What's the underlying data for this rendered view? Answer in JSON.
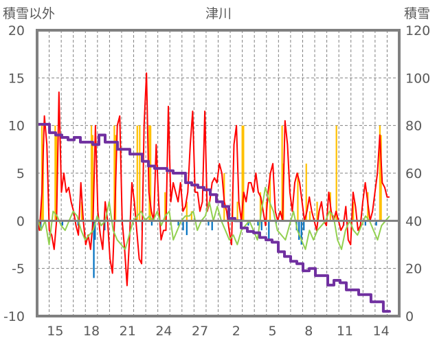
{
  "chart_data": {
    "type": "line",
    "title": "津川",
    "ylabel_left": "積雪以外",
    "ylabel_right": "積雪",
    "ylim_left": [
      -10,
      20
    ],
    "ylim_right": [
      0,
      120
    ],
    "yticks_left": [
      "20",
      "15",
      "10",
      "5",
      "0",
      "-5",
      "-10"
    ],
    "yticks_right": [
      "120",
      "100",
      "80",
      "60",
      "40",
      "20",
      "0"
    ],
    "x_range_days": [
      0,
      30
    ],
    "x_tick_labels": [
      {
        "day": 1,
        "label": "15"
      },
      {
        "day": 4,
        "label": "18"
      },
      {
        "day": 7,
        "label": "21"
      },
      {
        "day": 10,
        "label": "24"
      },
      {
        "day": 13,
        "label": "27"
      },
      {
        "day": 16,
        "label": "2"
      },
      {
        "day": 19,
        "label": "5"
      },
      {
        "day": 22,
        "label": "8"
      },
      {
        "day": 25,
        "label": "11"
      },
      {
        "day": 28,
        "label": "14"
      }
    ],
    "grid": true,
    "colors": {
      "red": "#ff0000",
      "green": "#92d050",
      "purple": "#7030a0",
      "yellow": "#ffc000",
      "blue": "#0070c0",
      "frame": "#808080"
    },
    "series": [
      {
        "name": "red",
        "axis": "left",
        "x_start": 0,
        "x_end": 29.2,
        "values": [
          0,
          -1,
          3,
          11,
          8,
          -1,
          -1.5,
          -3,
          0,
          13.5,
          3,
          5,
          3,
          3.5,
          2,
          1,
          -0.5,
          -1.5,
          4,
          0,
          -2.5,
          -1.5,
          -3,
          0,
          10,
          1,
          -1.5,
          -3,
          2,
          0,
          -4,
          -5.5,
          1,
          10,
          11,
          0,
          -3,
          -6.8,
          -2,
          4,
          2,
          -1,
          -4,
          -4.5,
          10,
          15.5,
          3,
          1,
          0,
          8,
          2,
          -2,
          -1,
          -1,
          12,
          2,
          4,
          3,
          2,
          4,
          1,
          1.5,
          3,
          8,
          11.5,
          3,
          3,
          1,
          2,
          11.5,
          1,
          2,
          4,
          4.5,
          4,
          6,
          5,
          2,
          1,
          -1,
          -2.5,
          8,
          10,
          2,
          0,
          3,
          2,
          4,
          4,
          3,
          5,
          3,
          2.5,
          1,
          -0.5,
          3,
          5,
          6,
          1,
          0,
          1,
          0,
          10.5,
          8,
          3,
          1,
          4,
          5,
          4,
          2,
          0,
          1,
          2.5,
          1,
          0,
          -1,
          1,
          2,
          0,
          -0.5,
          3,
          1,
          0,
          1,
          0,
          -1,
          -0.5,
          1.5,
          -2,
          -2.5,
          3,
          1.5,
          -1,
          -0.5,
          2,
          4,
          2,
          0,
          1,
          3,
          5,
          9,
          4,
          3.5,
          2.5,
          2.5
        ]
      },
      {
        "name": "green",
        "axis": "left",
        "x_start": 0,
        "x_end": 29.2,
        "values": [
          0.5,
          -1,
          0,
          -2.5,
          1,
          0.5,
          -0.5,
          -1,
          0,
          1,
          0.5,
          -1,
          -2,
          -1.5,
          -1,
          0.5,
          -0.5,
          0,
          2,
          -1,
          -2,
          -2.5,
          -3,
          -1.5,
          0,
          0.5,
          1,
          0,
          0.5,
          0,
          1,
          -0.5,
          0.5,
          1,
          -2,
          -1,
          0,
          0.5,
          0.5,
          1,
          -1,
          0,
          0.5,
          2,
          0,
          1.5,
          0,
          -1,
          -2,
          -1.5,
          -2.5,
          -1,
          -0.5,
          0,
          -1,
          -2,
          1,
          3.5,
          2,
          1,
          -1,
          -1.5,
          -2,
          -0.5,
          1,
          -1,
          -2,
          -3,
          -1,
          -2,
          -1,
          -0.5,
          0,
          1,
          0.5,
          -2,
          -3,
          -1,
          0,
          -1,
          -1.5,
          -0.5,
          0.5,
          0,
          -1,
          -2,
          -0.5,
          0,
          0.5
        ]
      },
      {
        "name": "purple",
        "axis": "right",
        "x_start": 0,
        "x_end": 29.2,
        "values": [
          80.5,
          80.5,
          77,
          76,
          75,
          74,
          75,
          73,
          73,
          72,
          76,
          73,
          73,
          70,
          70,
          68,
          68,
          65,
          63,
          62,
          62,
          61,
          60,
          60,
          56,
          55,
          54,
          53,
          51,
          48,
          46,
          41,
          40,
          37,
          35.5,
          35,
          33,
          32,
          31,
          27,
          25,
          23,
          22,
          19,
          20,
          17,
          17,
          13,
          15,
          14,
          11,
          11,
          9,
          9,
          6,
          6,
          2,
          1.5
        ]
      }
    ],
    "bars_yellow": [
      [
        0.4,
        10
      ],
      [
        0.5,
        8
      ],
      [
        1.5,
        10
      ],
      [
        1.6,
        9
      ],
      [
        3.7,
        2
      ],
      [
        4.5,
        10
      ],
      [
        4.6,
        9
      ],
      [
        6.4,
        10
      ],
      [
        6.5,
        9
      ],
      [
        8.3,
        10
      ],
      [
        8.5,
        10
      ],
      [
        9.3,
        10
      ],
      [
        9.4,
        10
      ],
      [
        10.6,
        3
      ],
      [
        12.4,
        2
      ],
      [
        12.8,
        1
      ],
      [
        15.5,
        5
      ],
      [
        16.2,
        3
      ],
      [
        16.6,
        2
      ],
      [
        17,
        10
      ],
      [
        17.1,
        10
      ],
      [
        18.5,
        3
      ],
      [
        19,
        2
      ],
      [
        19.3,
        5
      ],
      [
        20.3,
        10
      ],
      [
        20.4,
        6
      ],
      [
        21.6,
        5
      ],
      [
        22.3,
        6
      ],
      [
        22.6,
        1
      ],
      [
        23.2,
        2
      ],
      [
        24.3,
        3
      ],
      [
        24.8,
        10
      ],
      [
        26.2,
        2
      ],
      [
        27.4,
        3
      ],
      [
        28.4,
        10
      ],
      [
        28.5,
        9
      ]
    ],
    "bars_blue": [
      [
        0.3,
        -1
      ],
      [
        2.1,
        -0.5
      ],
      [
        3.4,
        -0.5
      ],
      [
        4.6,
        -1
      ],
      [
        4.7,
        -6
      ],
      [
        4.8,
        -2
      ],
      [
        5.6,
        -1
      ],
      [
        8.7,
        -1
      ],
      [
        9.5,
        -0.5
      ],
      [
        11.7,
        -0.5
      ],
      [
        12.1,
        -1
      ],
      [
        12.4,
        -1.5
      ],
      [
        14.2,
        -0.5
      ],
      [
        14.5,
        -1
      ],
      [
        17.5,
        -0.5
      ],
      [
        18.3,
        -0.5
      ],
      [
        18.6,
        -1
      ],
      [
        19.2,
        -2
      ],
      [
        19.8,
        -0.3
      ],
      [
        21.5,
        -1
      ],
      [
        21.7,
        -2
      ],
      [
        21.9,
        -2.5
      ],
      [
        22.1,
        -1
      ],
      [
        25.4,
        -0.5
      ],
      [
        27.2,
        -0.5
      ],
      [
        28.1,
        -0.5
      ]
    ]
  }
}
